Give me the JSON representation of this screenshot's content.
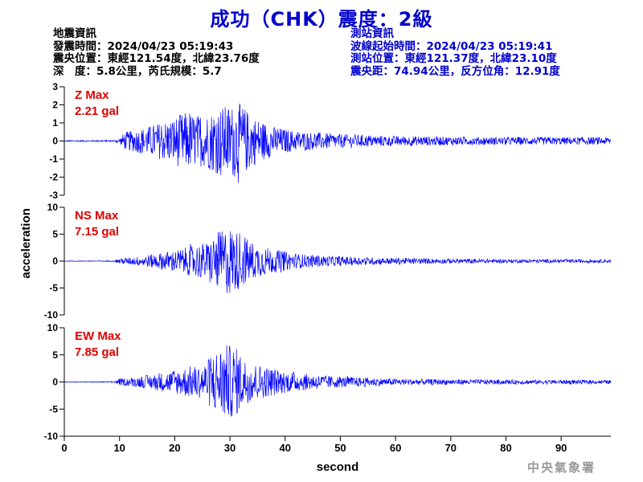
{
  "title": "成功（CHK）震度：2級",
  "quake_info": {
    "heading": "地震資訊",
    "origin_time": "發震時間：2024/04/23 05:19:43",
    "epicenter": "震央位置：東經121.54度，北緯23.76度",
    "depth_magnitude": "深　度：5.8公里，芮氏規模：5.7"
  },
  "station_info": {
    "heading": "測站資訊",
    "wave_start": "波線起始時間：2024/04/23 05:19:41",
    "station_location": "測站位置：東經121.37度，北緯23.10度",
    "distance_azimuth": "震央距：74.94公里，反方位角：12.91度"
  },
  "credit": "中央氣象署",
  "colors": {
    "title": "#0000cc",
    "trace": "#0000ff",
    "max_label": "#e00000",
    "station_text": "#0000cc"
  },
  "chart_data": {
    "type": "line",
    "xlabel": "second",
    "ylabel": "acceleration",
    "xlim": [
      0,
      99
    ],
    "x_ticks": [
      0,
      10,
      20,
      30,
      40,
      50,
      60,
      70,
      80,
      90
    ],
    "grid": false,
    "panels": [
      {
        "component": "Z",
        "max_label": "Z Max",
        "max_value": "2.21 gal",
        "ylim": [
          -3,
          3
        ],
        "y_ticks": [
          3,
          2,
          1,
          0,
          -1,
          -2,
          -3
        ],
        "envelope": [
          {
            "t": 0,
            "a": 0.03
          },
          {
            "t": 9,
            "a": 0.05
          },
          {
            "t": 10,
            "a": 0.15
          },
          {
            "t": 11,
            "a": 0.5
          },
          {
            "t": 14,
            "a": 0.7
          },
          {
            "t": 17,
            "a": 1.0
          },
          {
            "t": 19,
            "a": 1.2
          },
          {
            "t": 22,
            "a": 1.6
          },
          {
            "t": 25,
            "a": 1.4
          },
          {
            "t": 28,
            "a": 1.9
          },
          {
            "t": 30,
            "a": 2.0
          },
          {
            "t": 32,
            "a": 2.1
          },
          {
            "t": 34,
            "a": 1.4
          },
          {
            "t": 36,
            "a": 1.1
          },
          {
            "t": 38,
            "a": 0.8
          },
          {
            "t": 42,
            "a": 0.55
          },
          {
            "t": 47,
            "a": 0.45
          },
          {
            "t": 52,
            "a": 0.35
          },
          {
            "t": 60,
            "a": 0.28
          },
          {
            "t": 75,
            "a": 0.22
          },
          {
            "t": 99,
            "a": 0.2
          }
        ]
      },
      {
        "component": "NS",
        "max_label": "NS Max",
        "max_value": "7.15 gal",
        "ylim": [
          -10,
          10
        ],
        "y_ticks": [
          10,
          5,
          0,
          -5,
          -10
        ],
        "envelope": [
          {
            "t": 0,
            "a": 0.05
          },
          {
            "t": 9,
            "a": 0.1
          },
          {
            "t": 10,
            "a": 0.5
          },
          {
            "t": 13,
            "a": 0.8
          },
          {
            "t": 17,
            "a": 1.5
          },
          {
            "t": 20,
            "a": 2.0
          },
          {
            "t": 22,
            "a": 2.5
          },
          {
            "t": 24,
            "a": 3.2
          },
          {
            "t": 26,
            "a": 3.5
          },
          {
            "t": 28,
            "a": 5.5
          },
          {
            "t": 30,
            "a": 6.5
          },
          {
            "t": 32,
            "a": 5.0
          },
          {
            "t": 35,
            "a": 3.0
          },
          {
            "t": 38,
            "a": 2.2
          },
          {
            "t": 42,
            "a": 1.4
          },
          {
            "t": 47,
            "a": 1.0
          },
          {
            "t": 55,
            "a": 0.7
          },
          {
            "t": 65,
            "a": 0.5
          },
          {
            "t": 80,
            "a": 0.35
          },
          {
            "t": 99,
            "a": 0.3
          }
        ]
      },
      {
        "component": "EW",
        "max_label": "EW Max",
        "max_value": "7.85 gal",
        "ylim": [
          -10,
          10
        ],
        "y_ticks": [
          10,
          5,
          0,
          -5,
          -10
        ],
        "envelope": [
          {
            "t": 0,
            "a": 0.05
          },
          {
            "t": 9,
            "a": 0.1
          },
          {
            "t": 10,
            "a": 0.6
          },
          {
            "t": 13,
            "a": 0.9
          },
          {
            "t": 17,
            "a": 1.6
          },
          {
            "t": 20,
            "a": 2.2
          },
          {
            "t": 23,
            "a": 3.0
          },
          {
            "t": 25,
            "a": 3.0
          },
          {
            "t": 27,
            "a": 5.5
          },
          {
            "t": 29,
            "a": 7.0
          },
          {
            "t": 31,
            "a": 6.5
          },
          {
            "t": 33,
            "a": 4.0
          },
          {
            "t": 36,
            "a": 3.0
          },
          {
            "t": 40,
            "a": 2.0
          },
          {
            "t": 45,
            "a": 1.4
          },
          {
            "t": 50,
            "a": 1.0
          },
          {
            "t": 60,
            "a": 0.6
          },
          {
            "t": 75,
            "a": 0.45
          },
          {
            "t": 99,
            "a": 0.35
          }
        ]
      }
    ]
  }
}
